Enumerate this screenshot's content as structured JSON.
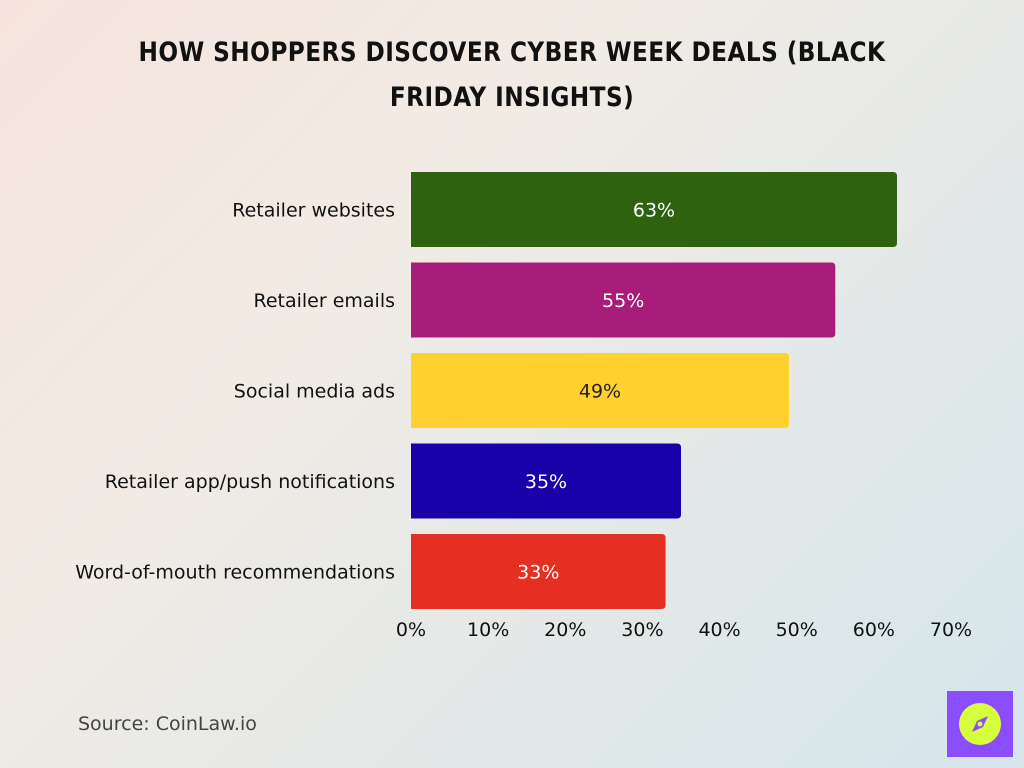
{
  "title": "How Shoppers Discover Cyber Week Deals (Black Friday Insights)",
  "source": "Source: CoinLaw.io",
  "logo_icon": "compass-icon",
  "colors": {
    "text": "#111111",
    "source_text": "#444444",
    "logo_bg": "#8a4dff",
    "logo_fg": "#d6ff3d"
  },
  "chart_data": {
    "type": "bar",
    "orientation": "horizontal",
    "categories": [
      "Retailer websites",
      "Retailer emails",
      "Social media ads",
      "Retailer app/push notifications",
      "Word-of-mouth recommendations"
    ],
    "values": [
      63,
      55,
      49,
      35,
      33
    ],
    "data_labels": [
      "63%",
      "55%",
      "49%",
      "35%",
      "33%"
    ],
    "bar_colors": [
      "#2e620f",
      "#a81c7a",
      "#ffd12e",
      "#1a00a8",
      "#e52f22"
    ],
    "label_colors": [
      "#ffffff",
      "#ffffff",
      "#222222",
      "#ffffff",
      "#ffffff"
    ],
    "xlim": [
      0,
      70
    ],
    "x_ticks": [
      0,
      10,
      20,
      30,
      40,
      50,
      60,
      70
    ],
    "x_tick_labels": [
      "0%",
      "10%",
      "20%",
      "30%",
      "40%",
      "50%",
      "60%",
      "70%"
    ],
    "grid": false,
    "legend": "none"
  }
}
